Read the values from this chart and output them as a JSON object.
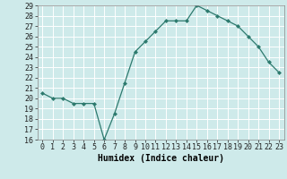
{
  "x": [
    0,
    1,
    2,
    3,
    4,
    5,
    6,
    7,
    8,
    9,
    10,
    11,
    12,
    13,
    14,
    15,
    16,
    17,
    18,
    19,
    20,
    21,
    22,
    23
  ],
  "y": [
    20.5,
    20.0,
    20.0,
    19.5,
    19.5,
    19.5,
    16.0,
    18.5,
    21.5,
    24.5,
    25.5,
    26.5,
    27.5,
    27.5,
    27.5,
    29.0,
    28.5,
    28.0,
    27.5,
    27.0,
    26.0,
    25.0,
    23.5,
    22.5
  ],
  "xlabel": "Humidex (Indice chaleur)",
  "xlim": [
    -0.5,
    23.5
  ],
  "ylim": [
    16,
    29
  ],
  "yticks": [
    16,
    17,
    18,
    19,
    20,
    21,
    22,
    23,
    24,
    25,
    26,
    27,
    28,
    29
  ],
  "xticks": [
    0,
    1,
    2,
    3,
    4,
    5,
    6,
    7,
    8,
    9,
    10,
    11,
    12,
    13,
    14,
    15,
    16,
    17,
    18,
    19,
    20,
    21,
    22,
    23
  ],
  "xtick_labels": [
    "0",
    "1",
    "2",
    "3",
    "4",
    "5",
    "6",
    "7",
    "8",
    "9",
    "10",
    "11",
    "12",
    "13",
    "14",
    "15",
    "16",
    "17",
    "18",
    "19",
    "20",
    "21",
    "22",
    "23"
  ],
  "line_color": "#2d7a6e",
  "bg_color": "#ceeaea",
  "grid_color": "#ffffff",
  "label_fontsize": 7,
  "tick_fontsize": 6
}
